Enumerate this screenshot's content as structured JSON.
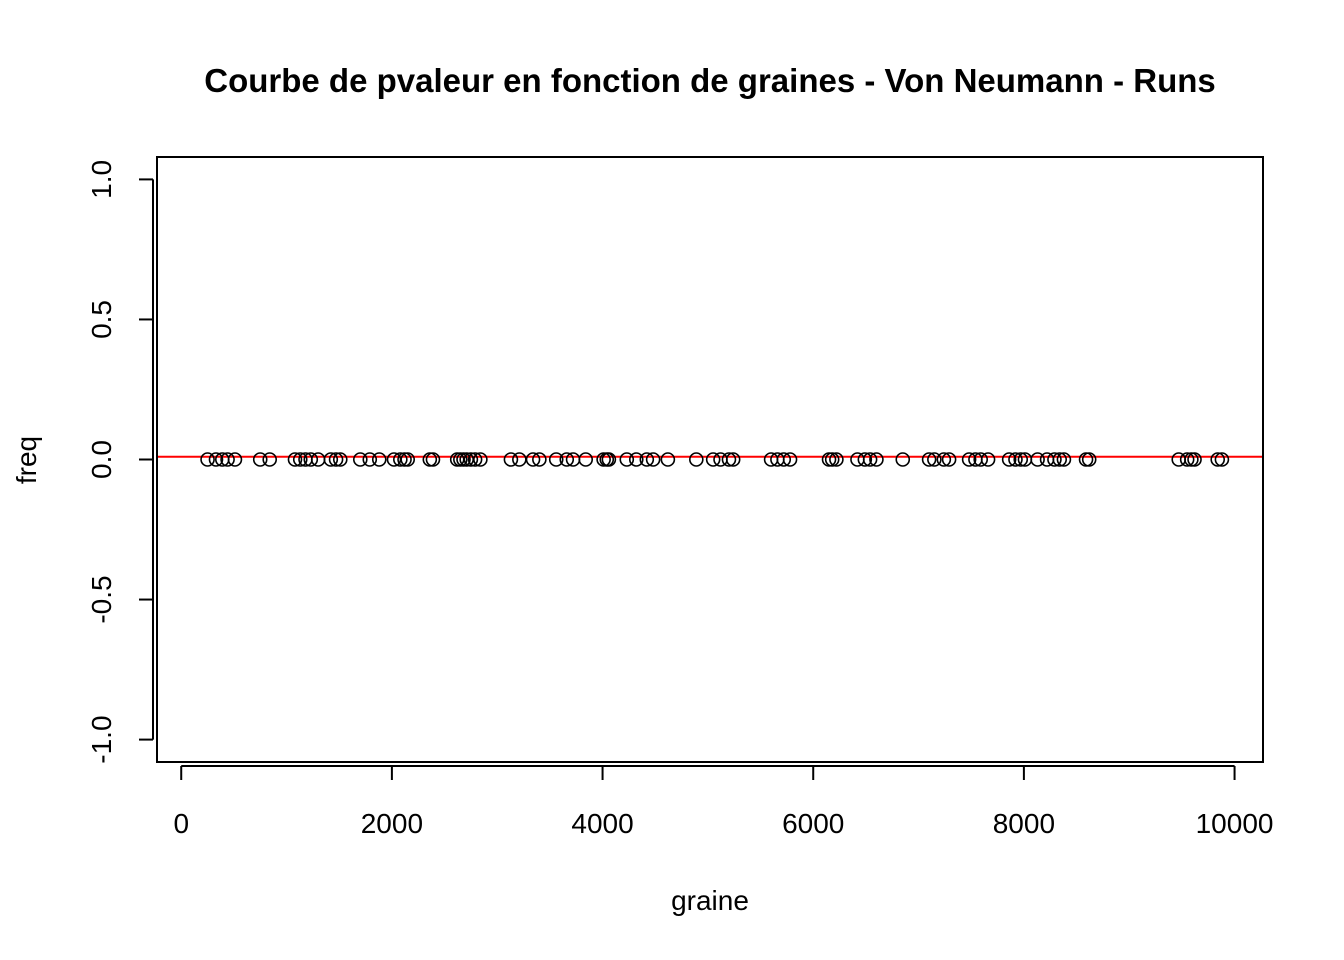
{
  "chart_data": {
    "type": "scatter",
    "title": "Courbe de pvaleur en fonction de graines - Von Neumann - Runs",
    "xlabel": "graine",
    "ylabel": "freq",
    "xlim": [
      -230,
      10270
    ],
    "ylim": [
      -1.08,
      1.08
    ],
    "xticks": [
      0,
      2000,
      4000,
      6000,
      8000,
      10000
    ],
    "xtick_labels": [
      "0",
      "2000",
      "4000",
      "6000",
      "8000",
      "10000"
    ],
    "yticks": [
      -1.0,
      -0.5,
      0.0,
      0.5,
      1.0
    ],
    "ytick_labels": [
      "-1.0",
      "-0.5",
      "0.0",
      "0.5",
      "1.0"
    ],
    "grid": false,
    "reference_line": {
      "y": 0.01,
      "color": "#ff0000"
    },
    "series": [
      {
        "marker": "open-circle",
        "color": "#000000",
        "x": [
          250,
          330,
          390,
          440,
          510,
          750,
          840,
          1080,
          1130,
          1180,
          1230,
          1300,
          1420,
          1470,
          1510,
          1700,
          1790,
          1880,
          2020,
          2080,
          2120,
          2150,
          2360,
          2390,
          2620,
          2650,
          2680,
          2710,
          2750,
          2790,
          2840,
          3130,
          3210,
          3340,
          3400,
          3560,
          3660,
          3720,
          3840,
          4010,
          4040,
          4060,
          4230,
          4320,
          4420,
          4480,
          4620,
          4890,
          5050,
          5120,
          5200,
          5240,
          5600,
          5660,
          5720,
          5780,
          6150,
          6180,
          6220,
          6420,
          6490,
          6540,
          6600,
          6850,
          7100,
          7150,
          7240,
          7290,
          7480,
          7540,
          7590,
          7660,
          7860,
          7920,
          7970,
          8010,
          8130,
          8220,
          8290,
          8340,
          8380,
          8590,
          8620,
          9470,
          9550,
          9590,
          9620,
          9840,
          9880
        ],
        "y": [
          0,
          0,
          0,
          0,
          0,
          0,
          0,
          0,
          0,
          0,
          0,
          0,
          0,
          0,
          0,
          0,
          0,
          0,
          0,
          0,
          0,
          0,
          0,
          0,
          0,
          0,
          0,
          0,
          0,
          0,
          0,
          0,
          0,
          0,
          0,
          0,
          0,
          0,
          0,
          0,
          0,
          0,
          0,
          0,
          0,
          0,
          0,
          0,
          0,
          0,
          0,
          0,
          0,
          0,
          0,
          0,
          0,
          0,
          0,
          0,
          0,
          0,
          0,
          0,
          0,
          0,
          0,
          0,
          0,
          0,
          0,
          0,
          0,
          0,
          0,
          0,
          0,
          0,
          0,
          0,
          0,
          0,
          0,
          0,
          0,
          0,
          0,
          0,
          0
        ]
      }
    ]
  }
}
